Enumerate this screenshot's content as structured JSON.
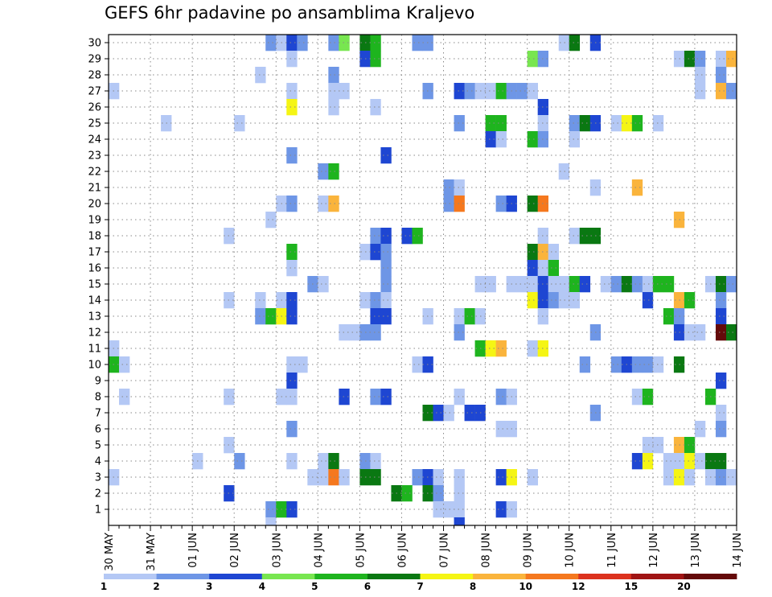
{
  "chart_data": {
    "type": "heatmap",
    "title": "GEFS 6hr padavine po ansamblima Kraljevo",
    "xlabel": "",
    "ylabel": "",
    "x_ticks": [
      "30 MAY",
      "31 MAY",
      "01 JUN",
      "02 JUN",
      "03 JUN",
      "04 JUN",
      "05 JUN",
      "06 JUN",
      "07 JUN",
      "08 JUN",
      "09 JUN",
      "10 JUN",
      "11 JUN",
      "12 JUN",
      "13 JUN",
      "14 JUN"
    ],
    "y_ticks": [
      1,
      2,
      3,
      4,
      5,
      6,
      7,
      8,
      9,
      10,
      11,
      12,
      13,
      14,
      15,
      16,
      17,
      18,
      19,
      20,
      21,
      22,
      23,
      24,
      25,
      26,
      27,
      28,
      29,
      30
    ],
    "steps_per_day": 4,
    "n_steps": 60,
    "grid": true,
    "legend": {
      "placement": "bottom",
      "bounds": [
        "1",
        "2",
        "3",
        "4",
        "5",
        "6",
        "7",
        "8",
        "10",
        "12",
        "15",
        "20"
      ],
      "colors": [
        "#b4c8f5",
        "#6e96e6",
        "#1e46d2",
        "#78e650",
        "#1eb41e",
        "#0a7812",
        "#f5f514",
        "#fab43c",
        "#f5781e",
        "#dc321e",
        "#a01414",
        "#640a0a"
      ]
    },
    "cells": [
      {
        "m": 30,
        "s": 16,
        "v": 2
      },
      {
        "m": 30,
        "s": 17,
        "v": 1.5
      },
      {
        "m": 30,
        "s": 18,
        "v": 3
      },
      {
        "m": 30,
        "s": 19,
        "v": 2
      },
      {
        "m": 30,
        "s": 22,
        "v": 2
      },
      {
        "m": 30,
        "s": 23,
        "v": 4
      },
      {
        "m": 30,
        "s": 25,
        "v": 6
      },
      {
        "m": 30,
        "s": 26,
        "v": 5
      },
      {
        "m": 30,
        "s": 30,
        "v": 2
      },
      {
        "m": 30,
        "s": 31,
        "v": 2
      },
      {
        "m": 30,
        "s": 44,
        "v": 1.5
      },
      {
        "m": 30,
        "s": 45,
        "v": 6
      },
      {
        "m": 30,
        "s": 47,
        "v": 3
      },
      {
        "m": 29,
        "s": 18,
        "v": 1.5
      },
      {
        "m": 29,
        "s": 25,
        "v": 3
      },
      {
        "m": 29,
        "s": 26,
        "v": 5
      },
      {
        "m": 29,
        "s": 41,
        "v": 4.5
      },
      {
        "m": 29,
        "s": 42,
        "v": 2
      },
      {
        "m": 29,
        "s": 55,
        "v": 1.5
      },
      {
        "m": 29,
        "s": 56,
        "v": 6
      },
      {
        "m": 29,
        "s": 57,
        "v": 2
      },
      {
        "m": 29,
        "s": 59,
        "v": 1.5
      },
      {
        "m": 29,
        "s": 60,
        "v": 9
      },
      {
        "m": 28,
        "s": 15,
        "v": 1.5
      },
      {
        "m": 28,
        "s": 22,
        "v": 2
      },
      {
        "m": 28,
        "s": 57,
        "v": 1.5
      },
      {
        "m": 28,
        "s": 59,
        "v": 2
      },
      {
        "m": 27,
        "s": 1,
        "v": 1.5
      },
      {
        "m": 27,
        "s": 18,
        "v": 1.5
      },
      {
        "m": 27,
        "s": 22,
        "v": 1.5
      },
      {
        "m": 27,
        "s": 23,
        "v": 1.5
      },
      {
        "m": 27,
        "s": 31,
        "v": 2
      },
      {
        "m": 27,
        "s": 34,
        "v": 3
      },
      {
        "m": 27,
        "s": 35,
        "v": 2
      },
      {
        "m": 27,
        "s": 36,
        "v": 1.5
      },
      {
        "m": 27,
        "s": 37,
        "v": 1.5
      },
      {
        "m": 27,
        "s": 38,
        "v": 5
      },
      {
        "m": 27,
        "s": 39,
        "v": 2
      },
      {
        "m": 27,
        "s": 40,
        "v": 2
      },
      {
        "m": 27,
        "s": 41,
        "v": 1.5
      },
      {
        "m": 27,
        "s": 57,
        "v": 1.5
      },
      {
        "m": 27,
        "s": 59,
        "v": 9
      },
      {
        "m": 27,
        "s": 60,
        "v": 2
      },
      {
        "m": 26,
        "s": 18,
        "v": 7.5
      },
      {
        "m": 26,
        "s": 22,
        "v": 1.5
      },
      {
        "m": 26,
        "s": 26,
        "v": 1.5
      },
      {
        "m": 26,
        "s": 42,
        "v": 3
      },
      {
        "m": 25,
        "s": 6,
        "v": 1.5
      },
      {
        "m": 25,
        "s": 13,
        "v": 1.5
      },
      {
        "m": 25,
        "s": 34,
        "v": 2
      },
      {
        "m": 25,
        "s": 37,
        "v": 5
      },
      {
        "m": 25,
        "s": 38,
        "v": 5
      },
      {
        "m": 25,
        "s": 42,
        "v": 1.5
      },
      {
        "m": 25,
        "s": 45,
        "v": 2
      },
      {
        "m": 25,
        "s": 46,
        "v": 6.5
      },
      {
        "m": 25,
        "s": 47,
        "v": 3
      },
      {
        "m": 25,
        "s": 49,
        "v": 1.5
      },
      {
        "m": 25,
        "s": 50,
        "v": 7.5
      },
      {
        "m": 25,
        "s": 51,
        "v": 5
      },
      {
        "m": 25,
        "s": 53,
        "v": 1.5
      },
      {
        "m": 24,
        "s": 37,
        "v": 3
      },
      {
        "m": 24,
        "s": 38,
        "v": 1.5
      },
      {
        "m": 24,
        "s": 41,
        "v": 5
      },
      {
        "m": 24,
        "s": 42,
        "v": 2
      },
      {
        "m": 24,
        "s": 45,
        "v": 1.5
      },
      {
        "m": 23,
        "s": 18,
        "v": 2
      },
      {
        "m": 23,
        "s": 27,
        "v": 3
      },
      {
        "m": 22,
        "s": 21,
        "v": 2
      },
      {
        "m": 22,
        "s": 22,
        "v": 5
      },
      {
        "m": 22,
        "s": 44,
        "v": 1.5
      },
      {
        "m": 21,
        "s": 33,
        "v": 2
      },
      {
        "m": 21,
        "s": 34,
        "v": 1.5
      },
      {
        "m": 21,
        "s": 47,
        "v": 1.5
      },
      {
        "m": 21,
        "s": 51,
        "v": 9
      },
      {
        "m": 20,
        "s": 17,
        "v": 1.5
      },
      {
        "m": 20,
        "s": 18,
        "v": 2
      },
      {
        "m": 20,
        "s": 21,
        "v": 1.5
      },
      {
        "m": 20,
        "s": 22,
        "v": 9
      },
      {
        "m": 20,
        "s": 33,
        "v": 2
      },
      {
        "m": 20,
        "s": 34,
        "v": 11
      },
      {
        "m": 20,
        "s": 38,
        "v": 2
      },
      {
        "m": 20,
        "s": 39,
        "v": 3
      },
      {
        "m": 20,
        "s": 41,
        "v": 6.5
      },
      {
        "m": 20,
        "s": 42,
        "v": 11
      },
      {
        "m": 19,
        "s": 16,
        "v": 1.5
      },
      {
        "m": 19,
        "s": 55,
        "v": 9
      },
      {
        "m": 18,
        "s": 12,
        "v": 1.5
      },
      {
        "m": 18,
        "s": 26,
        "v": 2
      },
      {
        "m": 18,
        "s": 27,
        "v": 3
      },
      {
        "m": 18,
        "s": 29,
        "v": 3
      },
      {
        "m": 18,
        "s": 30,
        "v": 5
      },
      {
        "m": 18,
        "s": 42,
        "v": 1.5
      },
      {
        "m": 18,
        "s": 45,
        "v": 1.5
      },
      {
        "m": 18,
        "s": 46,
        "v": 6.5
      },
      {
        "m": 18,
        "s": 47,
        "v": 6.5
      },
      {
        "m": 17,
        "s": 18,
        "v": 5.5
      },
      {
        "m": 17,
        "s": 25,
        "v": 1.5
      },
      {
        "m": 17,
        "s": 26,
        "v": 3
      },
      {
        "m": 17,
        "s": 27,
        "v": 2
      },
      {
        "m": 17,
        "s": 41,
        "v": 6.5
      },
      {
        "m": 17,
        "s": 42,
        "v": 9
      },
      {
        "m": 17,
        "s": 43,
        "v": 1.5
      },
      {
        "m": 16,
        "s": 18,
        "v": 1.5
      },
      {
        "m": 16,
        "s": 27,
        "v": 2
      },
      {
        "m": 16,
        "s": 41,
        "v": 3
      },
      {
        "m": 16,
        "s": 42,
        "v": 1.5
      },
      {
        "m": 16,
        "s": 43,
        "v": 5
      },
      {
        "m": 15,
        "s": 20,
        "v": 2
      },
      {
        "m": 15,
        "s": 21,
        "v": 1.5
      },
      {
        "m": 15,
        "s": 27,
        "v": 2
      },
      {
        "m": 15,
        "s": 36,
        "v": 1.5
      },
      {
        "m": 15,
        "s": 37,
        "v": 1.5
      },
      {
        "m": 15,
        "s": 39,
        "v": 1.5
      },
      {
        "m": 15,
        "s": 40,
        "v": 1.5
      },
      {
        "m": 15,
        "s": 41,
        "v": 1.5
      },
      {
        "m": 15,
        "s": 42,
        "v": 3
      },
      {
        "m": 15,
        "s": 43,
        "v": 1.5
      },
      {
        "m": 15,
        "s": 44,
        "v": 1.5
      },
      {
        "m": 15,
        "s": 45,
        "v": 5
      },
      {
        "m": 15,
        "s": 46,
        "v": 3
      },
      {
        "m": 15,
        "s": 48,
        "v": 1.5
      },
      {
        "m": 15,
        "s": 49,
        "v": 2
      },
      {
        "m": 15,
        "s": 50,
        "v": 6
      },
      {
        "m": 15,
        "s": 51,
        "v": 2
      },
      {
        "m": 15,
        "s": 52,
        "v": 1.5
      },
      {
        "m": 15,
        "s": 53,
        "v": 5
      },
      {
        "m": 15,
        "s": 54,
        "v": 5
      },
      {
        "m": 15,
        "s": 58,
        "v": 1.5
      },
      {
        "m": 15,
        "s": 59,
        "v": 6.5
      },
      {
        "m": 15,
        "s": 60,
        "v": 2
      },
      {
        "m": 14,
        "s": 12,
        "v": 1.5
      },
      {
        "m": 14,
        "s": 15,
        "v": 1.5
      },
      {
        "m": 14,
        "s": 17,
        "v": 1.5
      },
      {
        "m": 14,
        "s": 18,
        "v": 3
      },
      {
        "m": 14,
        "s": 25,
        "v": 1.5
      },
      {
        "m": 14,
        "s": 26,
        "v": 2
      },
      {
        "m": 14,
        "s": 27,
        "v": 1.5
      },
      {
        "m": 14,
        "s": 41,
        "v": 7.5
      },
      {
        "m": 14,
        "s": 42,
        "v": 3
      },
      {
        "m": 14,
        "s": 43,
        "v": 2
      },
      {
        "m": 14,
        "s": 44,
        "v": 1.5
      },
      {
        "m": 14,
        "s": 45,
        "v": 1.5
      },
      {
        "m": 14,
        "s": 52,
        "v": 3
      },
      {
        "m": 14,
        "s": 55,
        "v": 9
      },
      {
        "m": 14,
        "s": 56,
        "v": 5
      },
      {
        "m": 14,
        "s": 59,
        "v": 2
      },
      {
        "m": 13,
        "s": 15,
        "v": 2
      },
      {
        "m": 13,
        "s": 16,
        "v": 5
      },
      {
        "m": 13,
        "s": 17,
        "v": 7.5
      },
      {
        "m": 13,
        "s": 18,
        "v": 3
      },
      {
        "m": 13,
        "s": 26,
        "v": 3
      },
      {
        "m": 13,
        "s": 27,
        "v": 3
      },
      {
        "m": 13,
        "s": 31,
        "v": 1.5
      },
      {
        "m": 13,
        "s": 34,
        "v": 1.5
      },
      {
        "m": 13,
        "s": 35,
        "v": 5
      },
      {
        "m": 13,
        "s": 36,
        "v": 1.5
      },
      {
        "m": 13,
        "s": 42,
        "v": 1.5
      },
      {
        "m": 13,
        "s": 54,
        "v": 5
      },
      {
        "m": 13,
        "s": 55,
        "v": 2
      },
      {
        "m": 13,
        "s": 59,
        "v": 3
      },
      {
        "m": 12,
        "s": 23,
        "v": 1.5
      },
      {
        "m": 12,
        "s": 24,
        "v": 1.5
      },
      {
        "m": 12,
        "s": 25,
        "v": 2
      },
      {
        "m": 12,
        "s": 26,
        "v": 2
      },
      {
        "m": 12,
        "s": 34,
        "v": 2
      },
      {
        "m": 12,
        "s": 47,
        "v": 2
      },
      {
        "m": 12,
        "s": 55,
        "v": 3
      },
      {
        "m": 12,
        "s": 56,
        "v": 1.5
      },
      {
        "m": 12,
        "s": 57,
        "v": 1.5
      },
      {
        "m": 12,
        "s": 59,
        "v": 25
      },
      {
        "m": 12,
        "s": 60,
        "v": 6
      },
      {
        "m": 11,
        "s": 1,
        "v": 1.5
      },
      {
        "m": 11,
        "s": 36,
        "v": 5
      },
      {
        "m": 11,
        "s": 37,
        "v": 7.5
      },
      {
        "m": 11,
        "s": 38,
        "v": 9
      },
      {
        "m": 11,
        "s": 41,
        "v": 1.5
      },
      {
        "m": 11,
        "s": 42,
        "v": 7.5
      },
      {
        "m": 10,
        "s": 1,
        "v": 5
      },
      {
        "m": 10,
        "s": 2,
        "v": 1.5
      },
      {
        "m": 10,
        "s": 18,
        "v": 1.5
      },
      {
        "m": 10,
        "s": 19,
        "v": 1.5
      },
      {
        "m": 10,
        "s": 30,
        "v": 1.5
      },
      {
        "m": 10,
        "s": 31,
        "v": 3
      },
      {
        "m": 10,
        "s": 46,
        "v": 2
      },
      {
        "m": 10,
        "s": 49,
        "v": 2
      },
      {
        "m": 10,
        "s": 50,
        "v": 3
      },
      {
        "m": 10,
        "s": 51,
        "v": 2
      },
      {
        "m": 10,
        "s": 52,
        "v": 2
      },
      {
        "m": 10,
        "s": 53,
        "v": 1.5
      },
      {
        "m": 10,
        "s": 55,
        "v": 6
      },
      {
        "m": 9,
        "s": 18,
        "v": 3
      },
      {
        "m": 9,
        "s": 59,
        "v": 3
      },
      {
        "m": 8,
        "s": 2,
        "v": 1.5
      },
      {
        "m": 8,
        "s": 12,
        "v": 1.5
      },
      {
        "m": 8,
        "s": 17,
        "v": 1.5
      },
      {
        "m": 8,
        "s": 18,
        "v": 1.5
      },
      {
        "m": 8,
        "s": 23,
        "v": 3
      },
      {
        "m": 8,
        "s": 26,
        "v": 2
      },
      {
        "m": 8,
        "s": 27,
        "v": 3
      },
      {
        "m": 8,
        "s": 34,
        "v": 1.5
      },
      {
        "m": 8,
        "s": 38,
        "v": 2
      },
      {
        "m": 8,
        "s": 39,
        "v": 1.5
      },
      {
        "m": 8,
        "s": 51,
        "v": 1.5
      },
      {
        "m": 8,
        "s": 52,
        "v": 5
      },
      {
        "m": 8,
        "s": 58,
        "v": 5
      },
      {
        "m": 7,
        "s": 31,
        "v": 6
      },
      {
        "m": 7,
        "s": 32,
        "v": 3
      },
      {
        "m": 7,
        "s": 33,
        "v": 1.5
      },
      {
        "m": 7,
        "s": 35,
        "v": 3
      },
      {
        "m": 7,
        "s": 36,
        "v": 3
      },
      {
        "m": 7,
        "s": 47,
        "v": 2
      },
      {
        "m": 7,
        "s": 59,
        "v": 1.5
      },
      {
        "m": 6,
        "s": 18,
        "v": 2
      },
      {
        "m": 6,
        "s": 38,
        "v": 1.5
      },
      {
        "m": 6,
        "s": 39,
        "v": 1.5
      },
      {
        "m": 6,
        "s": 57,
        "v": 1.5
      },
      {
        "m": 6,
        "s": 59,
        "v": 2
      },
      {
        "m": 5,
        "s": 12,
        "v": 1.5
      },
      {
        "m": 5,
        "s": 52,
        "v": 1.5
      },
      {
        "m": 5,
        "s": 53,
        "v": 1.5
      },
      {
        "m": 5,
        "s": 55,
        "v": 9
      },
      {
        "m": 5,
        "s": 56,
        "v": 5
      },
      {
        "m": 4,
        "s": 9,
        "v": 1.5
      },
      {
        "m": 4,
        "s": 13,
        "v": 2
      },
      {
        "m": 4,
        "s": 18,
        "v": 1.5
      },
      {
        "m": 4,
        "s": 21,
        "v": 1.5
      },
      {
        "m": 4,
        "s": 22,
        "v": 6
      },
      {
        "m": 4,
        "s": 25,
        "v": 2
      },
      {
        "m": 4,
        "s": 26,
        "v": 1.5
      },
      {
        "m": 4,
        "s": 51,
        "v": 3
      },
      {
        "m": 4,
        "s": 52,
        "v": 7.5
      },
      {
        "m": 4,
        "s": 54,
        "v": 1.5
      },
      {
        "m": 4,
        "s": 55,
        "v": 1.5
      },
      {
        "m": 4,
        "s": 56,
        "v": 7.5
      },
      {
        "m": 4,
        "s": 57,
        "v": 1.5
      },
      {
        "m": 4,
        "s": 58,
        "v": 6.5
      },
      {
        "m": 4,
        "s": 59,
        "v": 6.5
      },
      {
        "m": 3,
        "s": 1,
        "v": 1.5
      },
      {
        "m": 3,
        "s": 20,
        "v": 1.5
      },
      {
        "m": 3,
        "s": 21,
        "v": 1.5
      },
      {
        "m": 3,
        "s": 22,
        "v": 11
      },
      {
        "m": 3,
        "s": 23,
        "v": 1.5
      },
      {
        "m": 3,
        "s": 25,
        "v": 6.5
      },
      {
        "m": 3,
        "s": 26,
        "v": 6.5
      },
      {
        "m": 3,
        "s": 30,
        "v": 2
      },
      {
        "m": 3,
        "s": 31,
        "v": 3
      },
      {
        "m": 3,
        "s": 32,
        "v": 1.5
      },
      {
        "m": 3,
        "s": 34,
        "v": 1.5
      },
      {
        "m": 3,
        "s": 38,
        "v": 3
      },
      {
        "m": 3,
        "s": 39,
        "v": 7.5
      },
      {
        "m": 3,
        "s": 41,
        "v": 1.5
      },
      {
        "m": 3,
        "s": 54,
        "v": 1.5
      },
      {
        "m": 3,
        "s": 55,
        "v": 7.5
      },
      {
        "m": 3,
        "s": 56,
        "v": 1.5
      },
      {
        "m": 3,
        "s": 58,
        "v": 1.5
      },
      {
        "m": 3,
        "s": 59,
        "v": 2
      },
      {
        "m": 3,
        "s": 60,
        "v": 1.5
      },
      {
        "m": 2,
        "s": 12,
        "v": 3
      },
      {
        "m": 2,
        "s": 28,
        "v": 6
      },
      {
        "m": 2,
        "s": 29,
        "v": 5
      },
      {
        "m": 2,
        "s": 31,
        "v": 6.5
      },
      {
        "m": 2,
        "s": 32,
        "v": 2
      },
      {
        "m": 2,
        "s": 34,
        "v": 1.5
      },
      {
        "m": 1,
        "s": 16,
        "v": 2
      },
      {
        "m": 1,
        "s": 17,
        "v": 5
      },
      {
        "m": 1,
        "s": 18,
        "v": 3
      },
      {
        "m": 1,
        "s": 32,
        "v": 1.5
      },
      {
        "m": 1,
        "s": 33,
        "v": 1.5
      },
      {
        "m": 1,
        "s": 34,
        "v": 1.5
      },
      {
        "m": 1,
        "s": 38,
        "v": 3
      },
      {
        "m": 1,
        "s": 39,
        "v": 1.5
      },
      {
        "m": 0,
        "s": 16,
        "v": 1.5
      },
      {
        "m": 0,
        "s": 34,
        "v": 3
      }
    ]
  }
}
